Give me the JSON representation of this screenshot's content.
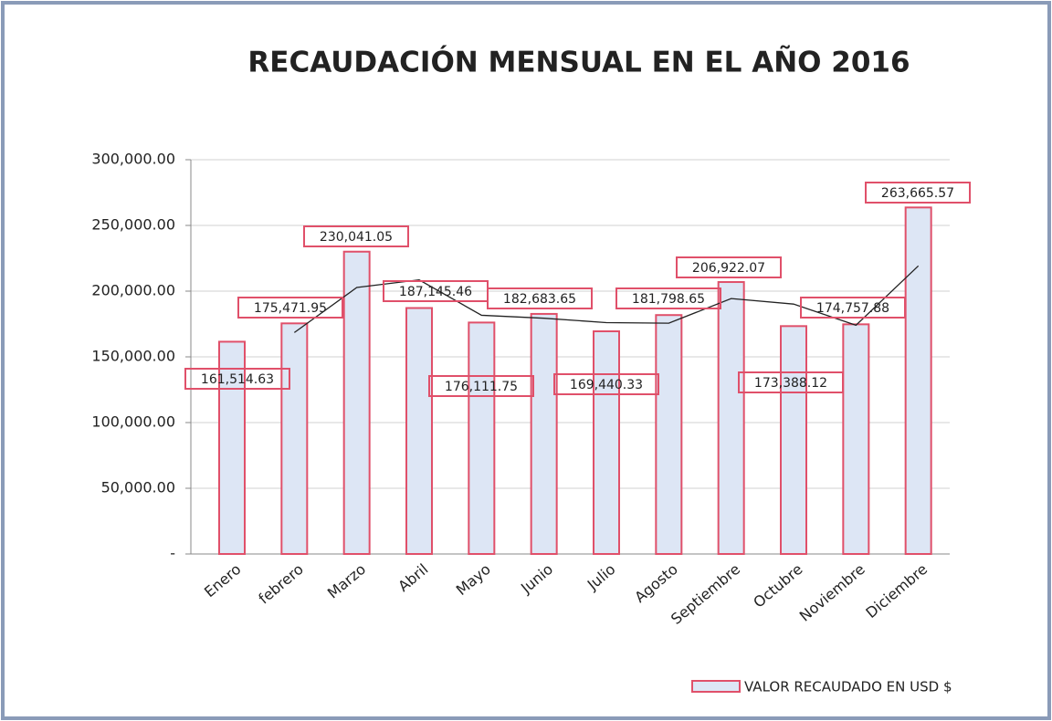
{
  "chart_data": {
    "type": "bar",
    "title": "RECAUDACIÓN MENSUAL EN EL AÑO 2016",
    "categories": [
      "Enero",
      "febrero",
      "Marzo",
      "Abril",
      "Mayo",
      "Junio",
      "Julio",
      "Agosto",
      "Septiembre",
      "Octubre",
      "Noviembre",
      "Diciembre"
    ],
    "series": [
      {
        "name": "VALOR RECAUDADO EN USD $",
        "color": "#dde6f5",
        "edge": "#e0506a",
        "values": [
          161514.63,
          175471.95,
          230041.05,
          187145.46,
          176111.75,
          182683.65,
          169440.33,
          181798.65,
          206922.07,
          173388.12,
          174757.88,
          263665.57
        ],
        "value_labels": [
          "161,514.63",
          "175,471.95",
          "230,041.05",
          "187,145.46",
          "176,111.75",
          "182,683.65",
          "169,440.33",
          "181,798.65",
          "206,922.07",
          "173,388.12",
          "174,757.88",
          "263,665.57"
        ]
      },
      {
        "type": "line",
        "color": "#222222",
        "values": [
          null,
          168493,
          202756,
          208593,
          181629,
          179398,
          176062,
          175619,
          194360,
          190155,
          174073,
          219212
        ]
      }
    ],
    "ylim": [
      0,
      300000
    ],
    "yticks": [
      {
        "value": 0,
        "label": "-"
      },
      {
        "value": 50000,
        "label": "50,000.00"
      },
      {
        "value": 100000,
        "label": "100,000.00"
      },
      {
        "value": 150000,
        "label": "150,000.00"
      },
      {
        "value": 200000,
        "label": "200,000.00"
      },
      {
        "value": 250000,
        "label": "250,000.00"
      },
      {
        "value": 300000,
        "label": "300,000.00"
      }
    ],
    "grid": true
  }
}
